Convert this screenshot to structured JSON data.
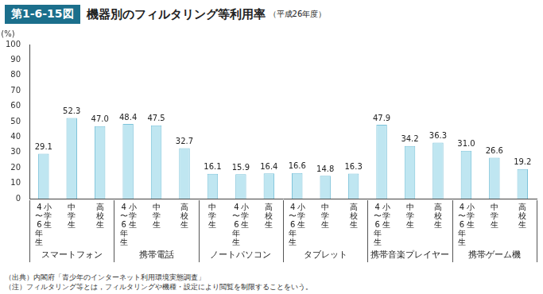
{
  "chart_data": {
    "type": "bar",
    "figure_label": "第1-6-15図",
    "title": "機器別のフィルタリング等利用率",
    "subtitle": "（平成26年度）",
    "y_label": "(%)",
    "notes": [
      "（出典）内閣府「青少年のインターネット利用環境実態調査」",
      "（注）フィルタリング等とは，フィルタリングや機種・設定により閲覧を制限することをいう。"
    ],
    "categories": [
      "小学生 4〜6年生",
      "中学生",
      "高校生",
      "小学生 4〜6年生",
      "中学生",
      "高校生",
      "中学生",
      "小学生 4〜6年生",
      "高校生",
      "小学生 4〜6年生",
      "中学生",
      "高校生",
      "小学生 4〜6年生",
      "中学生",
      "高校生",
      "小学生 4〜6年生",
      "中学生",
      "高校生"
    ],
    "groups": [
      "スマートフォン",
      "スマートフォン",
      "スマートフォン",
      "携帯電話",
      "携帯電話",
      "携帯電話",
      "ノートパソコン",
      "ノートパソコン",
      "ノートパソコン",
      "タブレット",
      "タブレット",
      "タブレット",
      "携帯音楽プレイヤー",
      "携帯音楽プレイヤー",
      "携帯音楽プレイヤー",
      "携帯ゲーム機",
      "携帯ゲーム機",
      "携帯ゲーム機"
    ],
    "values": [
      29.1,
      52.3,
      47.0,
      48.4,
      47.5,
      32.7,
      16.1,
      15.9,
      16.4,
      16.6,
      14.8,
      16.3,
      47.9,
      34.2,
      36.3,
      31.0,
      26.6,
      19.2
    ],
    "value_labels": [
      "29.1",
      "52.3",
      "47.0",
      "48.4",
      "47.5",
      "32.7",
      "16.1",
      "15.9",
      "16.4",
      "16.6",
      "14.8",
      "16.3",
      "47.9",
      "34.2",
      "36.3",
      "31.0",
      "26.6",
      "19.2"
    ],
    "data_labels": true,
    "color": "#bfe6f1",
    "ylim": [
      0,
      100
    ],
    "yticks": [
      0,
      10,
      20,
      30,
      40,
      50,
      60,
      70,
      80,
      90,
      100
    ],
    "grid": false
  }
}
